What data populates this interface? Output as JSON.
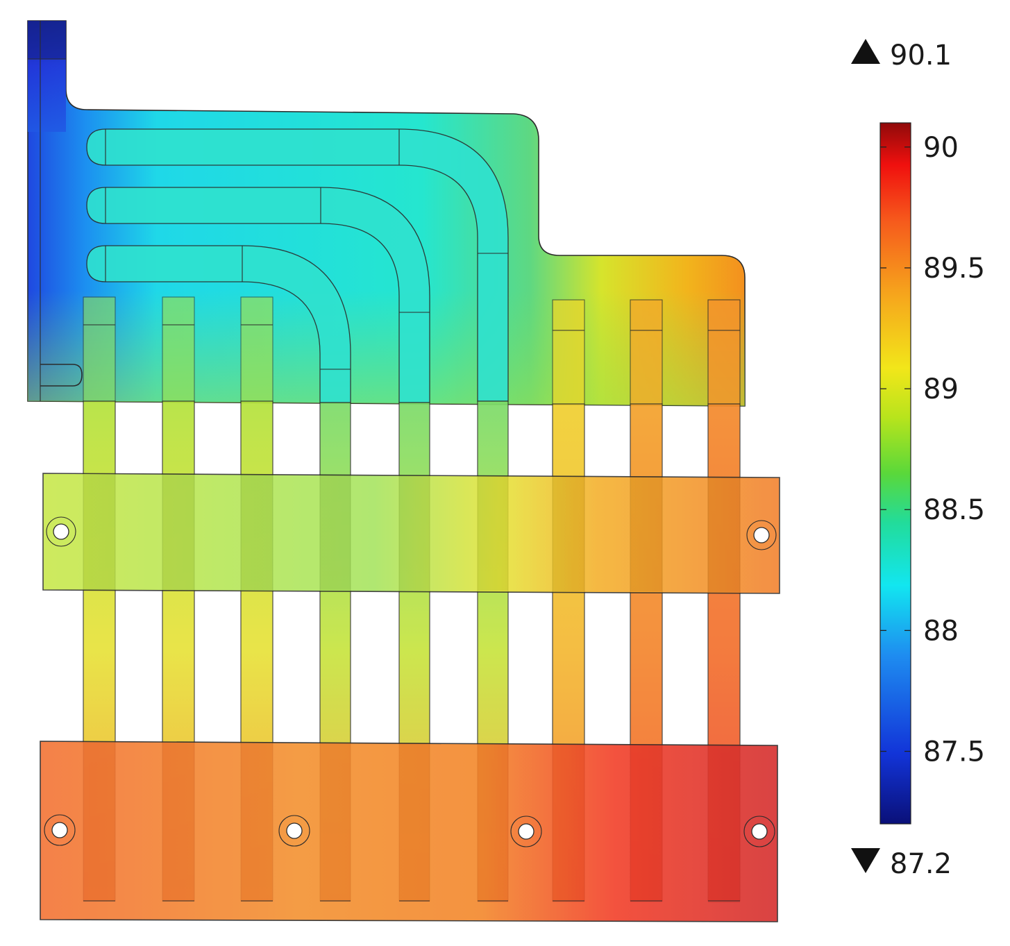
{
  "colorbar": {
    "max_value": 90.1,
    "min_value": 87.2,
    "max_label": "90.1",
    "min_label": "87.2",
    "ticks": [
      "90",
      "89.5",
      "89",
      "88.5",
      "88",
      "87.5"
    ],
    "colormap": [
      "#0a1078",
      "#1234d8",
      "#1e8cf0",
      "#12e6f0",
      "#22dc9a",
      "#5ad83a",
      "#b8e41c",
      "#f2e61a",
      "#f6a21c",
      "#f65a1c",
      "#f0100e",
      "#900a0a"
    ]
  },
  "field": {
    "inlet_color": "#1e2ad8",
    "top_region_color": "#2ee8d2",
    "middle_band_color": "#c6e84a",
    "bottom_band_color": "#f47a2a",
    "hot_corner_color": "#e82a2a"
  }
}
